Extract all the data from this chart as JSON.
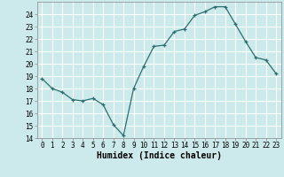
{
  "x": [
    0,
    1,
    2,
    3,
    4,
    5,
    6,
    7,
    8,
    9,
    10,
    11,
    12,
    13,
    14,
    15,
    16,
    17,
    18,
    19,
    20,
    21,
    22,
    23
  ],
  "y": [
    18.8,
    18.0,
    17.7,
    17.1,
    17.0,
    17.2,
    16.7,
    15.1,
    14.2,
    18.0,
    19.8,
    21.4,
    21.5,
    22.6,
    22.8,
    23.9,
    24.2,
    24.6,
    24.6,
    23.2,
    21.8,
    20.5,
    20.3,
    19.2
  ],
  "xlabel": "Humidex (Indice chaleur)",
  "ylim": [
    14,
    25
  ],
  "xlim": [
    -0.5,
    23.5
  ],
  "yticks": [
    14,
    15,
    16,
    17,
    18,
    19,
    20,
    21,
    22,
    23,
    24
  ],
  "xticks": [
    0,
    1,
    2,
    3,
    4,
    5,
    6,
    7,
    8,
    9,
    10,
    11,
    12,
    13,
    14,
    15,
    16,
    17,
    18,
    19,
    20,
    21,
    22,
    23
  ],
  "line_color": "#2d6e6e",
  "marker": "+",
  "bg_color": "#cceaeb",
  "grid_color": "#ffffff",
  "tick_fontsize": 5.5,
  "xlabel_fontsize": 7.0
}
